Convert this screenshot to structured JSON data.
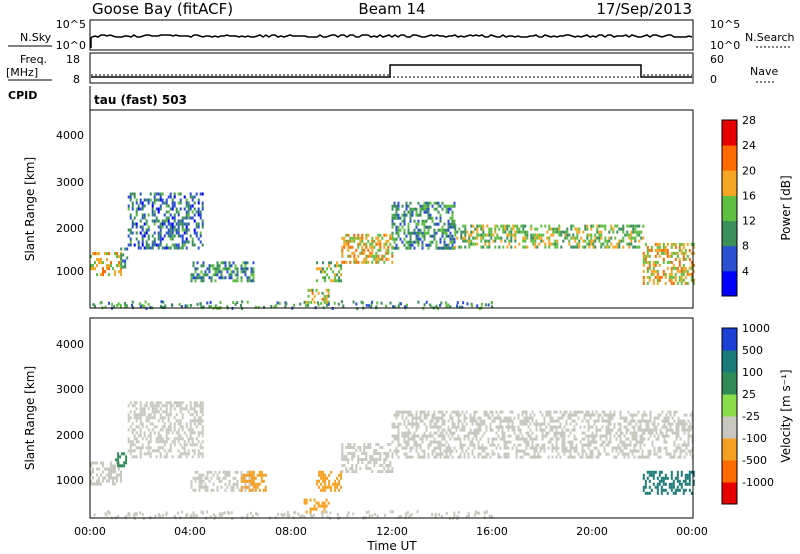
{
  "header": {
    "station": "Goose Bay (fitACF)",
    "beam": "Beam 14",
    "date": "17/Sep/2013"
  },
  "noise_panel": {
    "left_label": "N.Sky",
    "left_ticks": [
      "10^5",
      "10^0"
    ],
    "right_label": "N.Search",
    "right_ticks": [
      "10^5",
      "10^0"
    ]
  },
  "freq_panel": {
    "left_label_1": "Freq.",
    "left_label_2": "[MHz]",
    "left_ticks": [
      "18",
      "8"
    ],
    "right_label": "Nave",
    "right_ticks": [
      "60",
      "0"
    ],
    "cpid_label": "CPID",
    "cpid_text": "tau (fast) 503"
  },
  "colorbars": {
    "power": {
      "label": "Power [dB]",
      "ticks": [
        "4",
        "8",
        "12",
        "16",
        "20",
        "24",
        "28"
      ],
      "colors": [
        "#0000ff",
        "#2a4fd0",
        "#3a8f5a",
        "#5fbf40",
        "#f5a623",
        "#ff6a00",
        "#e60000"
      ]
    },
    "velocity": {
      "label": "Velocity [m s⁻¹]",
      "ticks": [
        "1000",
        "500",
        "100",
        "25",
        "-25",
        "-100",
        "-500",
        "-1000"
      ],
      "colors": [
        "#1c3fd6",
        "#1a7a78",
        "#2e8b57",
        "#8bdc4a",
        "#c8c8c0",
        "#f5a020",
        "#ff6a00",
        "#e60000"
      ]
    }
  },
  "axes": {
    "ylabel": "Slant Range [km]",
    "yticks": [
      "4000",
      "3000",
      "2000",
      "1000"
    ],
    "xticks": [
      "00:00",
      "04:00",
      "08:00",
      "12:00",
      "16:00",
      "20:00",
      "00:00"
    ],
    "xlabel": "Time UT"
  },
  "chart_data": [
    {
      "type": "heatmap",
      "title": "",
      "xlabel": "",
      "ylabel": "Slant Range [km]",
      "ylim": [
        180,
        4500
      ],
      "xlim": [
        0,
        24
      ],
      "colorbar_label": "Power [dB]",
      "clim": [
        0,
        30
      ],
      "regions": [
        {
          "x": [
            0.0,
            1.2
          ],
          "y": [
            900,
            1400
          ],
          "level": 18
        },
        {
          "x": [
            1.2,
            1.5
          ],
          "y": [
            1000,
            1500
          ],
          "level": 10
        },
        {
          "x": [
            1.5,
            4.5
          ],
          "y": [
            1500,
            2700
          ],
          "level": 8
        },
        {
          "x": [
            4.0,
            6.5
          ],
          "y": [
            800,
            1200
          ],
          "level": 10
        },
        {
          "x": [
            8.5,
            9.5
          ],
          "y": [
            300,
            600
          ],
          "level": 16
        },
        {
          "x": [
            9.0,
            10.0
          ],
          "y": [
            800,
            1200
          ],
          "level": 14
        },
        {
          "x": [
            10.0,
            12.0
          ],
          "y": [
            1200,
            1800
          ],
          "level": 18
        },
        {
          "x": [
            12.0,
            14.5
          ],
          "y": [
            1500,
            2500
          ],
          "level": 10
        },
        {
          "x": [
            14.5,
            22.0
          ],
          "y": [
            1500,
            2000
          ],
          "level": 14
        },
        {
          "x": [
            22.0,
            24.0
          ],
          "y": [
            700,
            1600
          ],
          "level": 18
        }
      ]
    },
    {
      "type": "heatmap",
      "title": "",
      "xlabel": "Time UT",
      "ylabel": "Slant Range [km]",
      "ylim": [
        180,
        4500
      ],
      "xlim": [
        0,
        24
      ],
      "colorbar_label": "Velocity [m s⁻¹]",
      "clim": [
        -1000,
        1000
      ],
      "regions": [
        {
          "x": [
            0.0,
            1.2
          ],
          "y": [
            900,
            1400
          ],
          "level": 0
        },
        {
          "x": [
            1.0,
            1.4
          ],
          "y": [
            1300,
            1600
          ],
          "level": 100
        },
        {
          "x": [
            1.5,
            4.5
          ],
          "y": [
            1500,
            2700
          ],
          "level": 0
        },
        {
          "x": [
            4.0,
            6.5
          ],
          "y": [
            800,
            1200
          ],
          "level": 0
        },
        {
          "x": [
            6.0,
            7.0
          ],
          "y": [
            800,
            1200
          ],
          "level": -100
        },
        {
          "x": [
            8.5,
            9.5
          ],
          "y": [
            300,
            600
          ],
          "level": -100
        },
        {
          "x": [
            9.0,
            10.0
          ],
          "y": [
            800,
            1200
          ],
          "level": -100
        },
        {
          "x": [
            10.0,
            12.0
          ],
          "y": [
            1200,
            1800
          ],
          "level": 0
        },
        {
          "x": [
            12.0,
            24.0
          ],
          "y": [
            1500,
            2500
          ],
          "level": 0
        },
        {
          "x": [
            22.0,
            24.0
          ],
          "y": [
            700,
            1200
          ],
          "level": 500
        }
      ]
    }
  ]
}
